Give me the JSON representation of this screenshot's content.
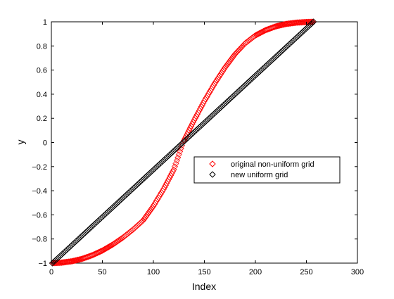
{
  "chart_data": {
    "type": "scatter",
    "title": "",
    "xlabel": "Index",
    "ylabel": "y",
    "xlim": [
      0,
      300
    ],
    "ylim": [
      -1,
      1
    ],
    "xticks": [
      0,
      50,
      100,
      150,
      200,
      250,
      300
    ],
    "xtick_labels": [
      "0",
      "50",
      "100",
      "150",
      "200",
      "250",
      "300"
    ],
    "yticks": [
      -1,
      -0.8,
      -0.6,
      -0.4,
      -0.2,
      0,
      0.2,
      0.4,
      0.6,
      0.8,
      1
    ],
    "ytick_labels": [
      "−1",
      "−0.8",
      "−0.6",
      "−0.4",
      "−0.2",
      "0",
      "0.2",
      "0.4",
      "0.6",
      "0.8",
      "1"
    ],
    "grid": false,
    "legend_position": "center-right",
    "marker": "diamond",
    "series": [
      {
        "name": "original non-uniform grid",
        "color": "#ff0000",
        "x": [
          1,
          10,
          20,
          30,
          40,
          50,
          60,
          70,
          80,
          90,
          100,
          110,
          120,
          129,
          140,
          150,
          160,
          170,
          180,
          190,
          200,
          210,
          220,
          230,
          240,
          250,
          257
        ],
        "y": [
          -1.0,
          -0.996,
          -0.985,
          -0.965,
          -0.935,
          -0.896,
          -0.847,
          -0.789,
          -0.722,
          -0.646,
          -0.527,
          -0.387,
          -0.225,
          0.0,
          0.185,
          0.344,
          0.488,
          0.618,
          0.732,
          0.822,
          0.887,
          0.931,
          0.962,
          0.982,
          0.993,
          0.998,
          1.0
        ]
      },
      {
        "name": "new uniform grid",
        "color": "#000000",
        "x": [
          1,
          257
        ],
        "y": [
          -1.0,
          1.0
        ]
      }
    ]
  }
}
